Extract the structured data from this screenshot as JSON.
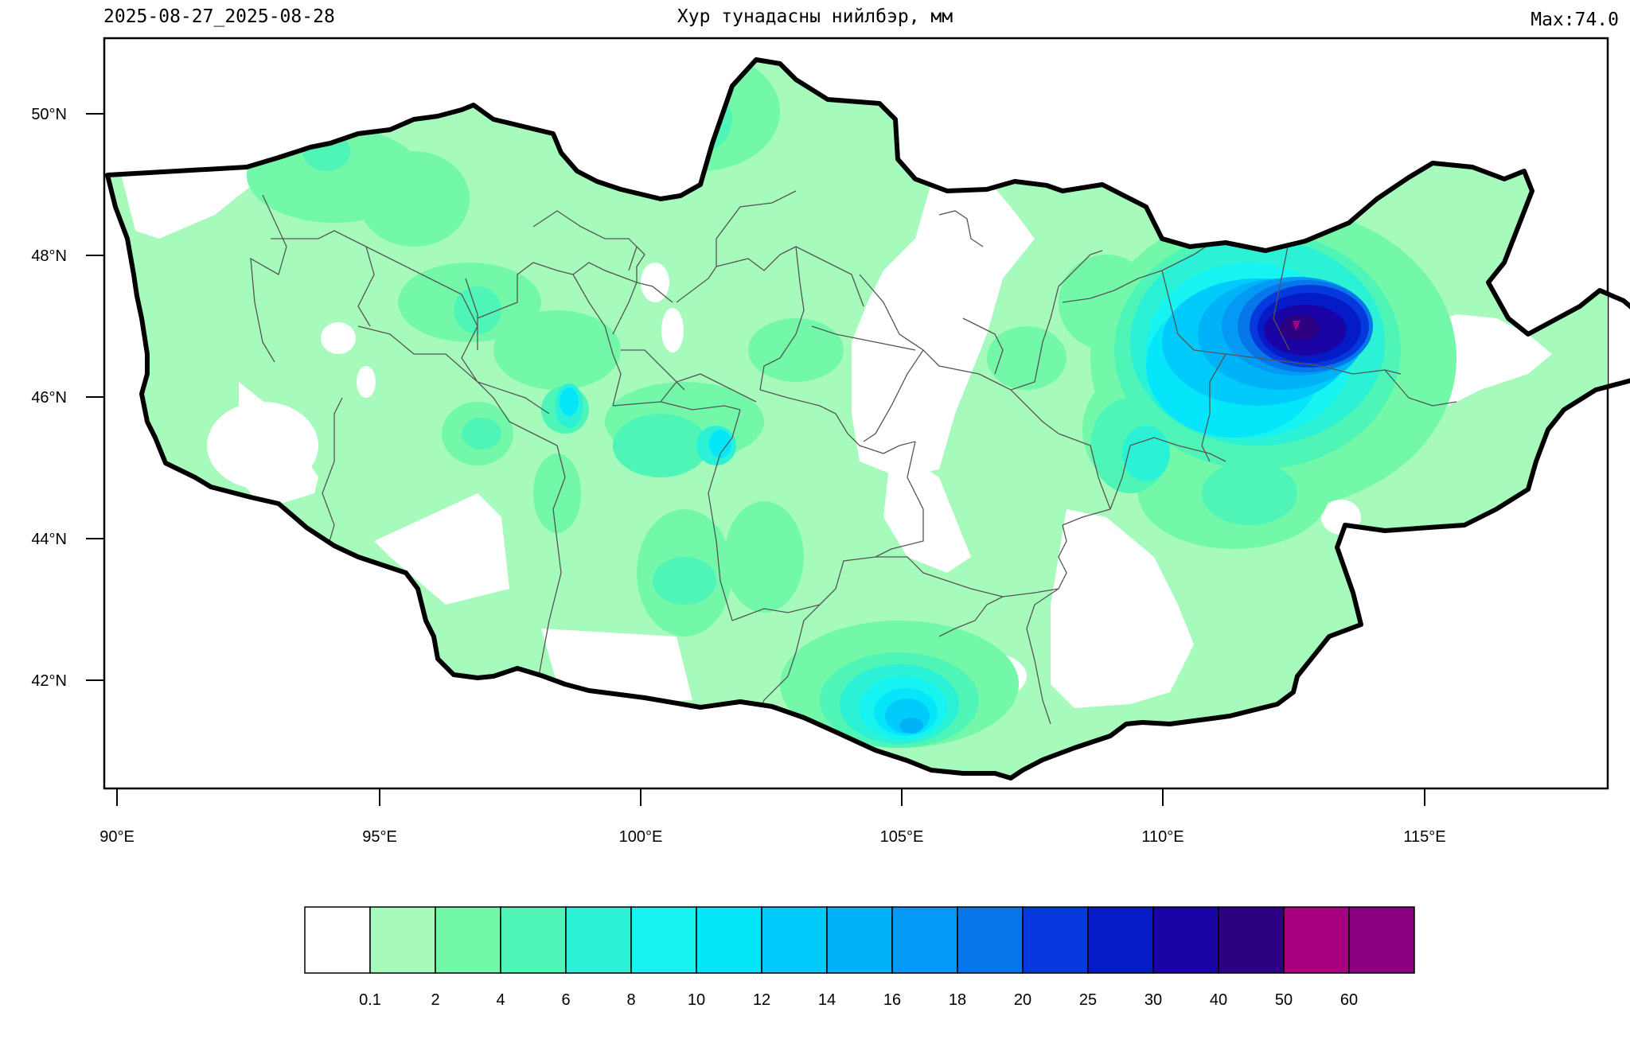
{
  "header": {
    "date_range": "2025-08-27_2025-08-28",
    "title": "Хур тунадасны нийлбэр, мм",
    "max_label": "Max:74.0"
  },
  "axes": {
    "lon_ticks": [
      "90°E",
      "95°E",
      "100°E",
      "105°E",
      "110°E",
      "115°E"
    ],
    "lat_ticks": [
      "50°N",
      "48°N",
      "46°N",
      "44°N",
      "42°N"
    ]
  },
  "legend": {
    "labels": [
      "0.1",
      "2",
      "4",
      "6",
      "8",
      "10",
      "12",
      "14",
      "16",
      "18",
      "20",
      "25",
      "30",
      "40",
      "50",
      "60"
    ],
    "colors": [
      "#ffffff",
      "#a6fbbc",
      "#72f8a8",
      "#4ef5b6",
      "#2bf1d6",
      "#16f3f0",
      "#06e6fa",
      "#00cbfb",
      "#00b2f8",
      "#0399f5",
      "#0776e9",
      "#0538dd",
      "#041bc7",
      "#1b04a6",
      "#2d0181",
      "#a6007f",
      "#8a0080"
    ]
  }
}
